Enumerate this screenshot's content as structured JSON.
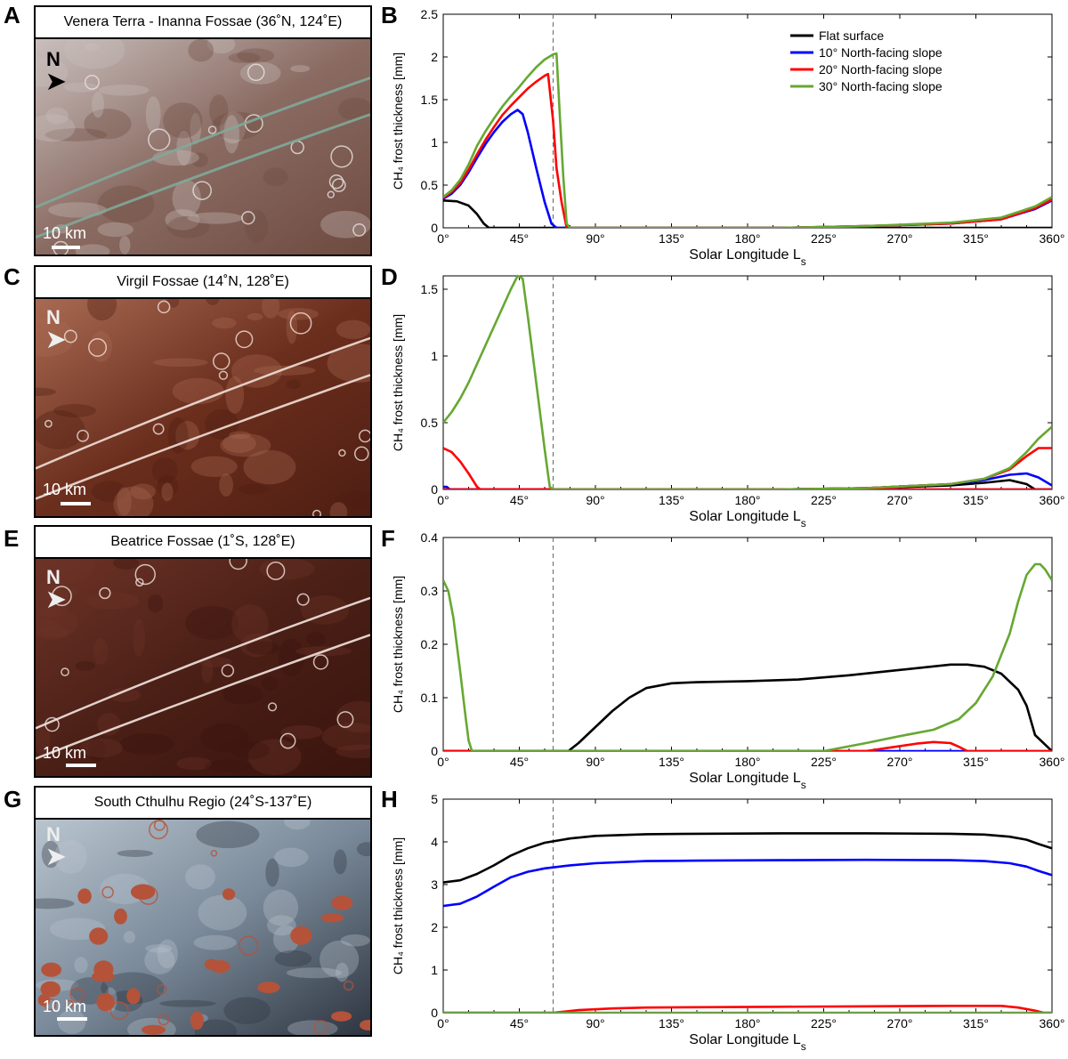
{
  "panels": [
    {
      "letter": "A",
      "title": "Venera Terra - Inanna Fossae (36˚N, 124˚E)",
      "north": "N",
      "scale": "10 km",
      "palette": [
        "#8a6b62",
        "#c9bfbd",
        "#6e4a40",
        "#e8e2e0"
      ],
      "northColor": "#111111"
    },
    {
      "letter": "C",
      "title": "Virgil Fossae (14˚N, 128˚E)",
      "north": "N",
      "scale": "10 km",
      "palette": [
        "#6b2e1d",
        "#a86a52",
        "#4e1e12",
        "#f1e0d8"
      ],
      "northColor": "#eeeeee"
    },
    {
      "letter": "E",
      "title": "Beatrice Fossae (1˚S, 128˚E)",
      "north": "N",
      "scale": "10 km",
      "palette": [
        "#4a1f16",
        "#6e3327",
        "#3a140d",
        "#f3e6e0"
      ],
      "northColor": "#eeeeee"
    },
    {
      "letter": "G",
      "title": "South Cthulhu Regio (24˚S-137˚E)",
      "north": "N",
      "scale": "10 km",
      "palette": [
        "#7a8a9a",
        "#b9c4ce",
        "#2e3540",
        "#b4533a"
      ],
      "northColor": "#eeeeee"
    }
  ],
  "colors": {
    "flat": "#000000",
    "s10": "#0000ff",
    "s20": "#ff0000",
    "s30": "#66a832",
    "dashed": "#777777"
  },
  "chart_data": [
    {
      "letter": "B",
      "type": "line",
      "xlabel": "Solar Longitude L",
      "xlabel_sub": "s",
      "ylabel": "CH₄ frost thickness [mm]",
      "xlim": [
        0,
        360
      ],
      "ylim": [
        0,
        2.5
      ],
      "xticks": [
        "0°",
        "45°",
        "90°",
        "135°",
        "180°",
        "225°",
        "270°",
        "315°",
        "360°"
      ],
      "yticks": [
        "0",
        "0.5",
        "1",
        "1.5",
        "2",
        "2.5"
      ],
      "ytick_values": [
        0,
        0.5,
        1,
        1.5,
        2,
        2.5
      ],
      "vline": 65,
      "legend": [
        "Flat surface",
        "10° North-facing slope",
        "20° North-facing slope",
        "30° North-facing slope"
      ],
      "series": [
        {
          "name": "Flat surface",
          "color": "#000000",
          "x": [
            0,
            8,
            15,
            20,
            24,
            27,
            30,
            60,
            360
          ],
          "y": [
            0.32,
            0.31,
            0.26,
            0.16,
            0.05,
            0,
            0,
            0,
            0
          ]
        },
        {
          "name": "10° North-facing slope",
          "color": "#0000ff",
          "x": [
            0,
            5,
            10,
            15,
            20,
            25,
            30,
            35,
            40,
            44,
            47,
            50,
            55,
            60,
            64,
            67,
            70,
            75,
            200,
            250,
            300,
            330,
            350,
            360
          ],
          "y": [
            0.34,
            0.4,
            0.5,
            0.65,
            0.82,
            0.98,
            1.12,
            1.24,
            1.33,
            1.38,
            1.33,
            1.12,
            0.7,
            0.3,
            0.05,
            0,
            0,
            0,
            0,
            0.02,
            0.05,
            0.1,
            0.22,
            0.32
          ]
        },
        {
          "name": "20° North-facing slope",
          "color": "#ff0000",
          "x": [
            0,
            5,
            10,
            15,
            20,
            25,
            30,
            35,
            40,
            45,
            50,
            55,
            60,
            62,
            65,
            67,
            70,
            73,
            75,
            200,
            250,
            300,
            330,
            350,
            360
          ],
          "y": [
            0.35,
            0.42,
            0.52,
            0.68,
            0.86,
            1.03,
            1.18,
            1.32,
            1.43,
            1.53,
            1.63,
            1.71,
            1.78,
            1.8,
            1.25,
            0.7,
            0.3,
            0,
            0,
            0,
            0.02,
            0.05,
            0.1,
            0.23,
            0.33
          ]
        },
        {
          "name": "30° North-facing slope",
          "color": "#66a832",
          "x": [
            0,
            5,
            10,
            15,
            20,
            25,
            30,
            35,
            40,
            45,
            50,
            55,
            60,
            65,
            67,
            69,
            71,
            73,
            75,
            200,
            250,
            300,
            330,
            350,
            360
          ],
          "y": [
            0.36,
            0.44,
            0.56,
            0.74,
            0.96,
            1.13,
            1.28,
            1.42,
            1.54,
            1.65,
            1.77,
            1.88,
            1.97,
            2.03,
            2.04,
            1.3,
            0.6,
            0.05,
            0,
            0,
            0.02,
            0.06,
            0.12,
            0.25,
            0.36
          ]
        }
      ]
    },
    {
      "letter": "D",
      "type": "line",
      "xlabel": "Solar Longitude L",
      "xlabel_sub": "s",
      "ylabel": "CH₄ frost thickness [mm]",
      "xlim": [
        0,
        360
      ],
      "ylim": [
        0,
        1.6
      ],
      "xticks": [
        "0°",
        "45°",
        "90°",
        "135°",
        "180°",
        "225°",
        "270°",
        "315°",
        "360°"
      ],
      "yticks": [
        "0",
        "0.5",
        "1",
        "1.5"
      ],
      "ytick_values": [
        0,
        0.5,
        1,
        1.5
      ],
      "vline": 65,
      "series": [
        {
          "name": "Flat surface",
          "color": "#000000",
          "x": [
            0,
            200,
            250,
            300,
            320,
            335,
            345,
            350,
            360
          ],
          "y": [
            0,
            0,
            0.01,
            0.03,
            0.05,
            0.07,
            0.04,
            0,
            0
          ]
        },
        {
          "name": "10° North-facing slope",
          "color": "#0000ff",
          "x": [
            0,
            2,
            4,
            360
          ],
          "y": [
            0.02,
            0.02,
            0,
            0
          ],
          "x2": [
            0,
            200,
            250,
            300,
            320,
            335,
            345,
            352,
            360
          ],
          "y2": [
            0,
            0,
            0.01,
            0.04,
            0.07,
            0.11,
            0.12,
            0.09,
            0.03
          ]
        },
        {
          "name": "20° North-facing slope",
          "color": "#ff0000",
          "x": [
            0,
            5,
            10,
            15,
            20,
            22,
            360
          ],
          "y": [
            0.31,
            0.28,
            0.21,
            0.12,
            0.02,
            0,
            0
          ],
          "x2": [
            0,
            200,
            250,
            300,
            320,
            335,
            345,
            352,
            360
          ],
          "y2": [
            0,
            0,
            0.01,
            0.04,
            0.08,
            0.15,
            0.25,
            0.31,
            0.31
          ]
        },
        {
          "name": "30° North-facing slope",
          "color": "#66a832",
          "x": [
            0,
            5,
            10,
            15,
            20,
            25,
            30,
            35,
            40,
            44,
            47,
            50,
            55,
            60,
            63,
            65,
            200,
            250,
            300,
            320,
            335,
            345,
            352,
            360
          ],
          "y": [
            0.5,
            0.58,
            0.68,
            0.8,
            0.94,
            1.08,
            1.22,
            1.36,
            1.5,
            1.6,
            1.58,
            1.3,
            0.8,
            0.3,
            0.02,
            0,
            0,
            0.01,
            0.04,
            0.08,
            0.16,
            0.28,
            0.38,
            0.47
          ]
        }
      ]
    },
    {
      "letter": "F",
      "type": "line",
      "xlabel": "Solar Longitude L",
      "xlabel_sub": "s",
      "ylabel": "CH₄ frost thickness [mm]",
      "xlim": [
        0,
        360
      ],
      "ylim": [
        0,
        0.4
      ],
      "xticks": [
        "0°",
        "45°",
        "90°",
        "135°",
        "180°",
        "225°",
        "270°",
        "315°",
        "360°"
      ],
      "yticks": [
        "0",
        "0.1",
        "0.2",
        "0.3",
        "0.4"
      ],
      "ytick_values": [
        0,
        0.1,
        0.2,
        0.3,
        0.4
      ],
      "vline": 65,
      "series": [
        {
          "name": "Flat surface",
          "color": "#000000",
          "x": [
            0,
            74,
            80,
            90,
            100,
            110,
            120,
            135,
            150,
            180,
            210,
            240,
            270,
            300,
            310,
            320,
            330,
            340,
            345,
            350,
            360
          ],
          "y": [
            0,
            0,
            0.015,
            0.045,
            0.075,
            0.1,
            0.118,
            0.127,
            0.129,
            0.131,
            0.134,
            0.142,
            0.152,
            0.162,
            0.162,
            0.158,
            0.145,
            0.115,
            0.085,
            0.03,
            0
          ]
        },
        {
          "name": "10° North-facing slope",
          "color": "#0000ff",
          "x": [
            0,
            360
          ],
          "y": [
            0,
            0
          ]
        },
        {
          "name": "20° North-facing slope",
          "color": "#ff0000",
          "x": [
            0,
            250,
            265,
            280,
            290,
            300,
            305,
            310,
            360
          ],
          "y": [
            0,
            0,
            0.007,
            0.014,
            0.017,
            0.015,
            0.008,
            0,
            0
          ]
        },
        {
          "name": "30° North-facing slope",
          "color": "#66a832",
          "x": [
            0,
            3,
            6,
            10,
            13,
            15,
            17,
            225,
            250,
            270,
            290,
            305,
            315,
            325,
            335,
            340,
            345,
            350,
            353,
            356,
            360
          ],
          "y": [
            0.32,
            0.3,
            0.25,
            0.15,
            0.07,
            0.02,
            0,
            0,
            0.015,
            0.028,
            0.04,
            0.06,
            0.09,
            0.14,
            0.22,
            0.28,
            0.33,
            0.35,
            0.35,
            0.34,
            0.32
          ]
        }
      ]
    },
    {
      "letter": "H",
      "type": "line",
      "xlabel": "Solar Longitude L",
      "xlabel_sub": "s",
      "ylabel": "CH₄ frost thickness [mm]",
      "xlim": [
        0,
        360
      ],
      "ylim": [
        0,
        5
      ],
      "xticks": [
        "0°",
        "45°",
        "90°",
        "135°",
        "180°",
        "225°",
        "270°",
        "315°",
        "360°"
      ],
      "yticks": [
        "0",
        "1",
        "2",
        "3",
        "4",
        "5"
      ],
      "ytick_values": [
        0,
        1,
        2,
        3,
        4,
        5
      ],
      "vline": 65,
      "series": [
        {
          "name": "Flat surface",
          "color": "#000000",
          "x": [
            0,
            10,
            20,
            30,
            40,
            50,
            60,
            75,
            90,
            120,
            150,
            200,
            250,
            300,
            320,
            335,
            345,
            352,
            360
          ],
          "y": [
            3.05,
            3.1,
            3.25,
            3.45,
            3.68,
            3.85,
            3.98,
            4.08,
            4.14,
            4.18,
            4.19,
            4.2,
            4.2,
            4.19,
            4.17,
            4.12,
            4.05,
            3.95,
            3.85
          ]
        },
        {
          "name": "10° North-facing slope",
          "color": "#0000ff",
          "x": [
            0,
            10,
            20,
            30,
            40,
            50,
            60,
            75,
            90,
            120,
            150,
            200,
            250,
            300,
            320,
            335,
            345,
            352,
            360
          ],
          "y": [
            2.5,
            2.55,
            2.72,
            2.95,
            3.17,
            3.3,
            3.38,
            3.45,
            3.5,
            3.55,
            3.56,
            3.57,
            3.58,
            3.57,
            3.55,
            3.5,
            3.42,
            3.32,
            3.22
          ]
        },
        {
          "name": "20° North-facing slope",
          "color": "#ff0000",
          "x": [
            0,
            65,
            80,
            100,
            120,
            150,
            200,
            250,
            300,
            330,
            340,
            350,
            355,
            360
          ],
          "y": [
            0,
            0,
            0.06,
            0.1,
            0.12,
            0.13,
            0.14,
            0.15,
            0.16,
            0.16,
            0.12,
            0.05,
            0,
            0
          ]
        },
        {
          "name": "30° North-facing slope",
          "color": "#66a832",
          "x": [
            0,
            360
          ],
          "y": [
            0,
            0
          ]
        }
      ]
    }
  ]
}
